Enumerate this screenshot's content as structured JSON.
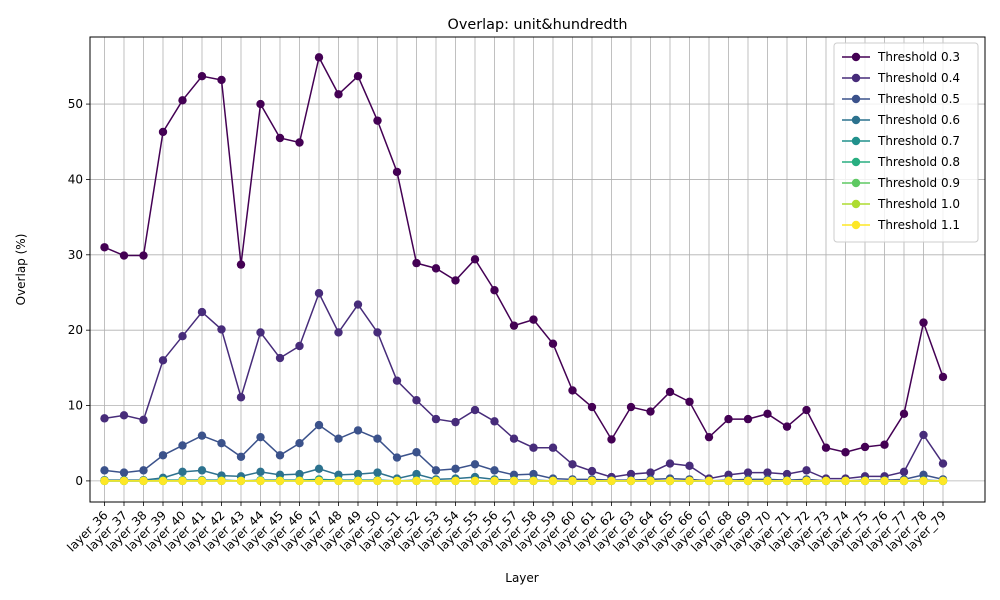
{
  "chart_data": {
    "type": "line",
    "title": "Overlap: unit&hundredth",
    "xlabel": "Layer",
    "ylabel": "Overlap (%)",
    "ylim": [
      -2.8,
      58.9
    ],
    "yticks": [
      0,
      10,
      20,
      30,
      40,
      50
    ],
    "grid": true,
    "legend_position": "top-right",
    "categories": [
      "layer_36",
      "layer_37",
      "layer_38",
      "layer_39",
      "layer_40",
      "layer_41",
      "layer_42",
      "layer_43",
      "layer_44",
      "layer_45",
      "layer_46",
      "layer_47",
      "layer_48",
      "layer_49",
      "layer_50",
      "layer_51",
      "layer_52",
      "layer_53",
      "layer_54",
      "layer_55",
      "layer_56",
      "layer_57",
      "layer_58",
      "layer_59",
      "layer_60",
      "layer_61",
      "layer_62",
      "layer_63",
      "layer_64",
      "layer_65",
      "layer_66",
      "layer_67",
      "layer_68",
      "layer_69",
      "layer_70",
      "layer_71",
      "layer_72",
      "layer_73",
      "layer_74",
      "layer_75",
      "layer_76",
      "layer_77",
      "layer_78",
      "layer_79"
    ],
    "series": [
      {
        "name": "Threshold 0.3",
        "color": "#440154",
        "values": [
          31.0,
          29.9,
          29.9,
          46.3,
          50.5,
          53.7,
          53.2,
          28.7,
          50.0,
          45.5,
          44.9,
          56.2,
          51.3,
          53.7,
          47.8,
          41.0,
          28.9,
          28.2,
          26.6,
          29.4,
          25.3,
          20.6,
          21.4,
          18.2,
          12.0,
          9.8,
          5.5,
          9.8,
          9.2,
          11.8,
          10.5,
          5.8,
          8.2,
          8.2,
          8.9,
          7.2,
          9.4,
          4.4,
          3.8,
          4.5,
          4.8,
          8.9,
          21.0,
          13.8
        ]
      },
      {
        "name": "Threshold 0.4",
        "color": "#472c7a",
        "values": [
          8.3,
          8.7,
          8.1,
          16.0,
          19.2,
          22.4,
          20.1,
          11.1,
          19.7,
          16.3,
          17.9,
          24.9,
          19.7,
          23.4,
          19.7,
          13.3,
          10.7,
          8.2,
          7.8,
          9.4,
          7.9,
          5.6,
          4.4,
          4.4,
          2.2,
          1.3,
          0.5,
          0.9,
          1.1,
          2.3,
          2.0,
          0.3,
          0.8,
          1.1,
          1.1,
          0.9,
          1.4,
          0.3,
          0.3,
          0.6,
          0.6,
          1.2,
          6.1,
          2.3
        ]
      },
      {
        "name": "Threshold 0.5",
        "color": "#3b528b",
        "values": [
          1.4,
          1.1,
          1.4,
          3.4,
          4.7,
          6.0,
          5.0,
          3.2,
          5.8,
          3.4,
          5.0,
          7.4,
          5.6,
          6.7,
          5.6,
          3.1,
          3.8,
          1.4,
          1.6,
          2.2,
          1.4,
          0.8,
          0.9,
          0.3,
          0.2,
          0.2,
          0.1,
          0.1,
          0.2,
          0.3,
          0.2,
          0.0,
          0.1,
          0.2,
          0.2,
          0.1,
          0.2,
          0.0,
          0.0,
          0.1,
          0.1,
          0.2,
          0.8,
          0.2
        ]
      },
      {
        "name": "Threshold 0.6",
        "color": "#2c728e",
        "values": [
          0.1,
          0.1,
          0.1,
          0.4,
          1.2,
          1.4,
          0.7,
          0.6,
          1.2,
          0.8,
          0.9,
          1.6,
          0.8,
          0.9,
          1.1,
          0.3,
          0.9,
          0.2,
          0.3,
          0.5,
          0.2,
          0.1,
          0.1,
          0.0,
          0.0,
          0.0,
          0.0,
          0.0,
          0.0,
          0.0,
          0.0,
          0.0,
          0.0,
          0.0,
          0.0,
          0.0,
          0.0,
          0.0,
          0.0,
          0.0,
          0.0,
          0.0,
          0.1,
          0.0
        ]
      },
      {
        "name": "Threshold 0.7",
        "color": "#21918c",
        "values": [
          0.0,
          0.0,
          0.0,
          0.1,
          0.1,
          0.1,
          0.1,
          0.0,
          0.1,
          0.1,
          0.1,
          0.2,
          0.1,
          0.1,
          0.1,
          0.0,
          0.1,
          0.0,
          0.0,
          0.0,
          0.0,
          0.0,
          0.0,
          0.0,
          0.0,
          0.0,
          0.0,
          0.0,
          0.0,
          0.0,
          0.0,
          0.0,
          0.0,
          0.0,
          0.0,
          0.0,
          0.0,
          0.0,
          0.0,
          0.0,
          0.0,
          0.0,
          0.0,
          0.0
        ]
      },
      {
        "name": "Threshold 0.8",
        "color": "#28ae80",
        "values": [
          0.0,
          0.0,
          0.0,
          0.0,
          0.0,
          0.0,
          0.0,
          0.0,
          0.0,
          0.0,
          0.0,
          0.0,
          0.0,
          0.0,
          0.0,
          0.0,
          0.0,
          0.0,
          0.0,
          0.0,
          0.0,
          0.0,
          0.0,
          0.0,
          0.0,
          0.0,
          0.0,
          0.0,
          0.0,
          0.0,
          0.0,
          0.0,
          0.0,
          0.0,
          0.0,
          0.0,
          0.0,
          0.0,
          0.0,
          0.0,
          0.0,
          0.0,
          0.0,
          0.0
        ]
      },
      {
        "name": "Threshold 0.9",
        "color": "#5ec962",
        "values": [
          0.0,
          0.0,
          0.0,
          0.0,
          0.0,
          0.0,
          0.0,
          0.0,
          0.0,
          0.0,
          0.0,
          0.0,
          0.0,
          0.0,
          0.0,
          0.0,
          0.0,
          0.0,
          0.0,
          0.0,
          0.0,
          0.0,
          0.0,
          0.0,
          0.0,
          0.0,
          0.0,
          0.0,
          0.0,
          0.0,
          0.0,
          0.0,
          0.0,
          0.0,
          0.0,
          0.0,
          0.0,
          0.0,
          0.0,
          0.0,
          0.0,
          0.0,
          0.0,
          0.0
        ]
      },
      {
        "name": "Threshold 1.0",
        "color": "#addc30",
        "values": [
          0.0,
          0.0,
          0.0,
          0.0,
          0.0,
          0.0,
          0.0,
          0.0,
          0.0,
          0.0,
          0.0,
          0.0,
          0.0,
          0.0,
          0.0,
          0.0,
          0.0,
          0.0,
          0.0,
          0.0,
          0.0,
          0.0,
          0.0,
          0.0,
          0.0,
          0.0,
          0.0,
          0.0,
          0.0,
          0.0,
          0.0,
          0.0,
          0.0,
          0.0,
          0.0,
          0.0,
          0.0,
          0.0,
          0.0,
          0.0,
          0.0,
          0.0,
          0.0,
          0.0
        ]
      },
      {
        "name": "Threshold 1.1",
        "color": "#fde725",
        "values": [
          0.0,
          0.0,
          0.0,
          0.0,
          0.0,
          0.0,
          0.0,
          0.0,
          0.0,
          0.0,
          0.0,
          0.0,
          0.0,
          0.0,
          0.0,
          0.0,
          0.0,
          0.0,
          0.0,
          0.0,
          0.0,
          0.0,
          0.0,
          0.0,
          0.0,
          0.0,
          0.0,
          0.0,
          0.0,
          0.0,
          0.0,
          0.0,
          0.0,
          0.0,
          0.0,
          0.0,
          0.0,
          0.0,
          0.0,
          0.0,
          0.0,
          0.0,
          0.0,
          0.0
        ]
      }
    ]
  }
}
